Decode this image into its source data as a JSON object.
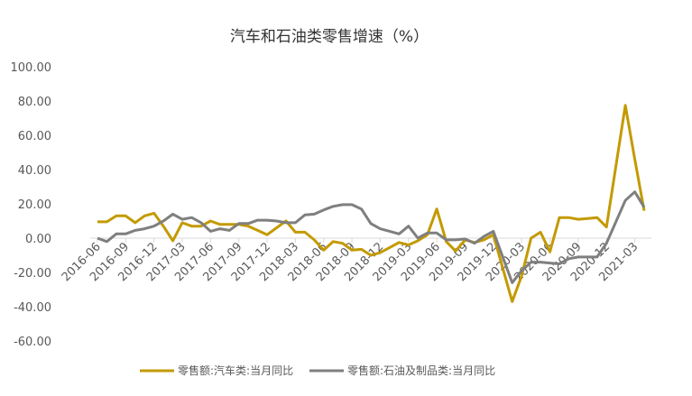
{
  "chart_data": {
    "type": "line",
    "title": "汽车和石油类零售增速（%）",
    "ylim": [
      -60,
      100
    ],
    "ytick_step": 20,
    "ytick_labels": [
      "100.00",
      "80.00",
      "60.00",
      "40.00",
      "20.00",
      "0.00",
      "-20.00",
      "-40.00",
      "-60.00"
    ],
    "xtick_labels": [
      "2016-06",
      "2016-09",
      "2016-12",
      "2017-03",
      "2017-06",
      "2017-09",
      "2017-12",
      "2018-03",
      "2018-06",
      "2018-09",
      "2018-12",
      "2019-03",
      "2019-06",
      "2019-09",
      "2019-12",
      "2020-03",
      "2020-06",
      "2020-09",
      "2020-12",
      "2021-03"
    ],
    "x": [
      "2016-06",
      "2016-07",
      "2016-08",
      "2016-09",
      "2016-10",
      "2016-11",
      "2016-12",
      "2017-01",
      "2017-02",
      "2017-03",
      "2017-04",
      "2017-05",
      "2017-06",
      "2017-07",
      "2017-08",
      "2017-09",
      "2017-10",
      "2017-11",
      "2017-12",
      "2018-01",
      "2018-02",
      "2018-03",
      "2018-04",
      "2018-05",
      "2018-06",
      "2018-07",
      "2018-08",
      "2018-09",
      "2018-10",
      "2018-11",
      "2018-12",
      "2019-01",
      "2019-02",
      "2019-03",
      "2019-04",
      "2019-05",
      "2019-06",
      "2019-07",
      "2019-08",
      "2019-09",
      "2019-10",
      "2019-11",
      "2019-12",
      "2020-01",
      "2020-02",
      "2020-03",
      "2020-04",
      "2020-05",
      "2020-06",
      "2020-07",
      "2020-08",
      "2020-09",
      "2020-10",
      "2020-11",
      "2020-12",
      "2021-01",
      "2021-02",
      "2021-03",
      "2021-04"
    ],
    "grid": false,
    "legend_position": "bottom",
    "series": [
      {
        "name": "零售额:汽车类:当月同比",
        "color": "#C39A00",
        "values": [
          9.5,
          9.5,
          13,
          13,
          9,
          13,
          14.5,
          7,
          -1.5,
          9,
          7,
          7,
          10,
          8,
          8,
          8,
          7,
          4.5,
          2,
          6,
          10,
          3.5,
          3.5,
          -1,
          -7,
          -2,
          -3,
          -7,
          -6.5,
          -10,
          -8.5,
          -5.5,
          -2.5,
          -4,
          -1.5,
          2,
          17,
          -2,
          -7.5,
          -1,
          -2.5,
          -1,
          2,
          null,
          -37,
          -22,
          0,
          3.5,
          -8,
          12,
          12,
          11,
          11.5,
          12,
          6.5,
          null,
          77.5,
          46,
          16
        ]
      },
      {
        "name": "零售额:石油及制品类:当月同比",
        "color": "#7F7F7F",
        "values": [
          0,
          -2,
          2.5,
          2.5,
          4.5,
          5.5,
          7,
          10,
          14,
          11,
          12,
          9,
          4,
          5.5,
          4.5,
          8.5,
          8.5,
          10.5,
          10.5,
          10,
          9,
          9,
          13.5,
          14,
          16.5,
          18.5,
          19.5,
          19.5,
          17,
          8.5,
          5.5,
          4,
          2.5,
          7,
          0,
          3,
          3,
          -1,
          -1,
          -0.5,
          -3,
          1,
          4,
          null,
          -26,
          -19,
          -14,
          -14,
          -14.5,
          -15,
          -12,
          -11,
          -11,
          -11,
          -3,
          null,
          22,
          27,
          18
        ]
      }
    ]
  }
}
